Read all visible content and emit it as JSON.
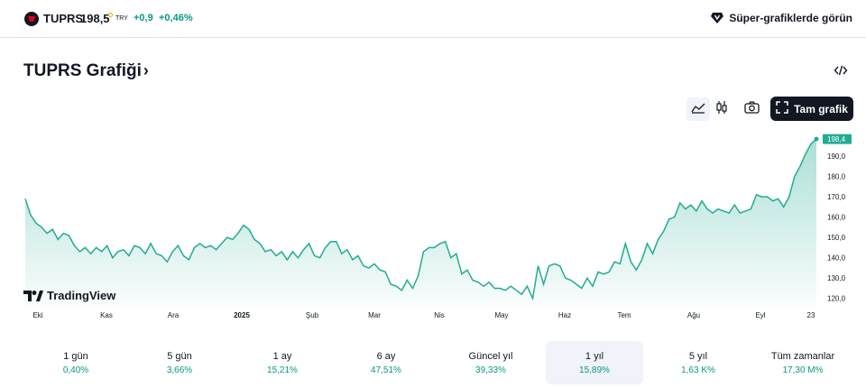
{
  "symbol": {
    "name": "TUPRS",
    "price": "198,5",
    "currency": "TRY",
    "change": "+0,9",
    "change_pct": "+0,46%",
    "positive_color": "#089981",
    "icon": "tuprs-logo-icon"
  },
  "super_charts_label": "Süper-grafiklerde görün",
  "chart_title": "TUPRS Grafiği",
  "toolbar": {
    "area_icon": "area-chart-icon",
    "candles_icon": "candlestick-icon",
    "camera_icon": "camera-icon",
    "full_chart_label": "Tam grafik"
  },
  "chart_data": {
    "type": "area",
    "series": [
      {
        "values": [
          169,
          161,
          157,
          155,
          152,
          154,
          149,
          152,
          151,
          146,
          143,
          145,
          142,
          145,
          143,
          146,
          140,
          143,
          144,
          141,
          146,
          145,
          142,
          147,
          142,
          141,
          138,
          143,
          146,
          141,
          139,
          145,
          147,
          145,
          146,
          144,
          147,
          150,
          149,
          152,
          156,
          154,
          149,
          147,
          143,
          144,
          141,
          143,
          139,
          143,
          140,
          144,
          147,
          141,
          140,
          145,
          148,
          148,
          142,
          144,
          139,
          141,
          136,
          135,
          137,
          134,
          133,
          127,
          126,
          124,
          129,
          125,
          131,
          143,
          145,
          145,
          147,
          148,
          140,
          142,
          132,
          134,
          129,
          128,
          126,
          128,
          125,
          125,
          124,
          126,
          124,
          122,
          126,
          120,
          136,
          127,
          136,
          137,
          136,
          130,
          129,
          127,
          125,
          130,
          126,
          133,
          132,
          133,
          138,
          137,
          147,
          138,
          134,
          139,
          147,
          142,
          149,
          153,
          159,
          160,
          167,
          164,
          166,
          163,
          168,
          164,
          162,
          164,
          163,
          162,
          166,
          162,
          163,
          164,
          171,
          170,
          170,
          168,
          169,
          165,
          170,
          180,
          185,
          191,
          196,
          198.4
        ]
      }
    ],
    "x_tick_labels": [
      "Eki",
      "Kas",
      "Ara",
      "2025",
      "Şub",
      "Mar",
      "Nis",
      "May",
      "Haz",
      "Tem",
      "Ağu",
      "Eyl",
      "23"
    ],
    "y_tick_labels": [
      "120,0",
      "130,0",
      "140,0",
      "150,0",
      "160,0",
      "170,0",
      "180,0",
      "190,0"
    ],
    "last_value_label": "198,4",
    "ylim": [
      115,
      202
    ],
    "line_color": "#22ab94",
    "fill_color": "#22ab94",
    "watermark": "TradingView"
  },
  "periods": [
    {
      "label": "1 gün",
      "value": "0,40%"
    },
    {
      "label": "5 gün",
      "value": "3,66%"
    },
    {
      "label": "1 ay",
      "value": "15,21%"
    },
    {
      "label": "6 ay",
      "value": "47,51%"
    },
    {
      "label": "Güncel yıl",
      "value": "39,33%"
    },
    {
      "label": "1 yıl",
      "value": "15,89%"
    },
    {
      "label": "5 yıl",
      "value": "1,63 K%"
    },
    {
      "label": "Tüm zamanlar",
      "value": "17,30 M%"
    }
  ],
  "active_period": "1 yıl"
}
